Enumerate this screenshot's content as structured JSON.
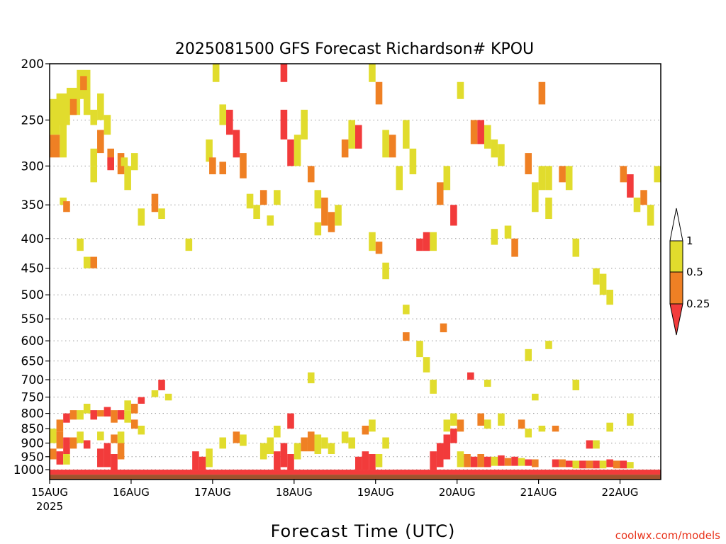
{
  "chart_data": {
    "type": "heatmap",
    "title": "2025081500 GFS Forecast Richardson# KPOU",
    "xlabel": "Forecast Time (UTC)",
    "ylabel": "",
    "credit": "coolwx.com/models",
    "x_unit": "hours since 2025-08-15 00Z",
    "x_range": [
      0,
      180
    ],
    "x_ticks": [
      {
        "hour": 0,
        "label": "15AUG",
        "sublabel": "2025"
      },
      {
        "hour": 24,
        "label": "16AUG",
        "sublabel": ""
      },
      {
        "hour": 48,
        "label": "17AUG",
        "sublabel": ""
      },
      {
        "hour": 72,
        "label": "18AUG",
        "sublabel": ""
      },
      {
        "hour": 96,
        "label": "19AUG",
        "sublabel": ""
      },
      {
        "hour": 120,
        "label": "20AUG",
        "sublabel": ""
      },
      {
        "hour": 144,
        "label": "21AUG",
        "sublabel": ""
      },
      {
        "hour": 168,
        "label": "22AUG",
        "sublabel": ""
      }
    ],
    "y_unit": "hPa",
    "y_scale": "log-pressure",
    "y_range": [
      1040,
      200
    ],
    "y_ticks": [
      200,
      250,
      300,
      350,
      400,
      450,
      500,
      550,
      600,
      650,
      700,
      750,
      800,
      850,
      900,
      950,
      1000
    ],
    "grid": "dotted horizontal",
    "colorbar": {
      "placement": "right",
      "levels": [
        {
          "label": "1",
          "range": ">1",
          "color": "#ffffff"
        },
        {
          "label": "0.5",
          "range": "0.5-1",
          "color": "#e1dc2d"
        },
        {
          "label": "0.25",
          "range": "0.25-0.5",
          "color": "#ef8024"
        },
        {
          "label": "",
          "range": "<0.25",
          "color": "#f23b3b"
        }
      ],
      "ticks": [
        "1",
        "0.5",
        "0.25"
      ]
    },
    "colors": {
      "low": "#f23b3b",
      "mid": "#ef8024",
      "high": "#e1dc2d",
      "ground": "#a0522d"
    },
    "ground": {
      "p_from": 1020,
      "p_to": 1040
    },
    "cells": [
      [
        0,
        3,
        230,
        265,
        "y"
      ],
      [
        0,
        3,
        265,
        290,
        "o"
      ],
      [
        2,
        6,
        225,
        255,
        "y"
      ],
      [
        3,
        5,
        255,
        290,
        "y"
      ],
      [
        5,
        9,
        220,
        245,
        "y"
      ],
      [
        6,
        8,
        230,
        245,
        "o"
      ],
      [
        8,
        12,
        205,
        230,
        "y"
      ],
      [
        9,
        11,
        210,
        222,
        "o"
      ],
      [
        10,
        12,
        225,
        245,
        "y"
      ],
      [
        12,
        14,
        240,
        255,
        "y"
      ],
      [
        14,
        16,
        225,
        250,
        "y"
      ],
      [
        14,
        16,
        260,
        285,
        "o"
      ],
      [
        16,
        18,
        245,
        265,
        "y"
      ],
      [
        17,
        19,
        280,
        300,
        "o"
      ],
      [
        17,
        19,
        290,
        305,
        "r"
      ],
      [
        20,
        22,
        285,
        310,
        "o"
      ],
      [
        21,
        23,
        290,
        300,
        "y"
      ],
      [
        22,
        24,
        300,
        330,
        "y"
      ],
      [
        24,
        26,
        285,
        305,
        "y"
      ],
      [
        3,
        5,
        340,
        350,
        "y"
      ],
      [
        4,
        6,
        345,
        360,
        "o"
      ],
      [
        12,
        14,
        280,
        300,
        "y"
      ],
      [
        12,
        14,
        300,
        320,
        "y"
      ],
      [
        26,
        28,
        355,
        380,
        "y"
      ],
      [
        30,
        32,
        335,
        360,
        "o"
      ],
      [
        32,
        34,
        355,
        370,
        "y"
      ],
      [
        8,
        10,
        400,
        420,
        "y"
      ],
      [
        10,
        12,
        430,
        450,
        "y"
      ],
      [
        12,
        14,
        430,
        450,
        "o"
      ],
      [
        40,
        42,
        400,
        420,
        "y"
      ],
      [
        46,
        48,
        270,
        295,
        "y"
      ],
      [
        47,
        49,
        290,
        310,
        "o"
      ],
      [
        48,
        50,
        200,
        215,
        "y"
      ],
      [
        50,
        52,
        235,
        255,
        "y"
      ],
      [
        52,
        54,
        240,
        265,
        "r"
      ],
      [
        54,
        56,
        260,
        290,
        "r"
      ],
      [
        50,
        52,
        295,
        310,
        "o"
      ],
      [
        56,
        58,
        285,
        315,
        "o"
      ],
      [
        58,
        60,
        335,
        355,
        "y"
      ],
      [
        60,
        62,
        350,
        370,
        "y"
      ],
      [
        62,
        64,
        330,
        350,
        "o"
      ],
      [
        64,
        66,
        365,
        380,
        "y"
      ],
      [
        66,
        68,
        330,
        350,
        "y"
      ],
      [
        68,
        70,
        200,
        215,
        "r"
      ],
      [
        68,
        70,
        240,
        270,
        "r"
      ],
      [
        70,
        72,
        270,
        300,
        "r"
      ],
      [
        72,
        74,
        265,
        300,
        "y"
      ],
      [
        74,
        76,
        240,
        270,
        "y"
      ],
      [
        76,
        78,
        300,
        320,
        "o"
      ],
      [
        78,
        80,
        330,
        355,
        "y"
      ],
      [
        80,
        82,
        340,
        380,
        "o"
      ],
      [
        82,
        84,
        360,
        390,
        "o"
      ],
      [
        84,
        86,
        350,
        380,
        "y"
      ],
      [
        78,
        80,
        375,
        395,
        "y"
      ],
      [
        86,
        88,
        270,
        290,
        "o"
      ],
      [
        88,
        90,
        250,
        280,
        "y"
      ],
      [
        90,
        92,
        255,
        280,
        "r"
      ],
      [
        94,
        96,
        200,
        215,
        "y"
      ],
      [
        96,
        98,
        215,
        235,
        "o"
      ],
      [
        98,
        100,
        260,
        290,
        "y"
      ],
      [
        100,
        102,
        265,
        290,
        "o"
      ],
      [
        102,
        104,
        300,
        330,
        "y"
      ],
      [
        104,
        106,
        250,
        280,
        "y"
      ],
      [
        106,
        108,
        280,
        310,
        "y"
      ],
      [
        94,
        96,
        390,
        420,
        "y"
      ],
      [
        96,
        98,
        405,
        425,
        "o"
      ],
      [
        98,
        100,
        440,
        470,
        "y"
      ],
      [
        108,
        110,
        400,
        420,
        "r"
      ],
      [
        110,
        112,
        390,
        420,
        "r"
      ],
      [
        112,
        114,
        390,
        420,
        "y"
      ],
      [
        114,
        116,
        320,
        350,
        "o"
      ],
      [
        116,
        118,
        300,
        330,
        "y"
      ],
      [
        118,
        120,
        350,
        380,
        "r"
      ],
      [
        120,
        122,
        215,
        230,
        "y"
      ],
      [
        124,
        126,
        250,
        275,
        "o"
      ],
      [
        126,
        128,
        250,
        275,
        "r"
      ],
      [
        128,
        130,
        255,
        280,
        "y"
      ],
      [
        130,
        132,
        270,
        290,
        "y"
      ],
      [
        132,
        134,
        275,
        300,
        "y"
      ],
      [
        130,
        132,
        385,
        410,
        "y"
      ],
      [
        134,
        136,
        380,
        400,
        "y"
      ],
      [
        136,
        138,
        400,
        430,
        "o"
      ],
      [
        140,
        142,
        285,
        310,
        "o"
      ],
      [
        142,
        144,
        320,
        360,
        "y"
      ],
      [
        144,
        146,
        300,
        330,
        "y"
      ],
      [
        146,
        148,
        300,
        330,
        "y"
      ],
      [
        150,
        152,
        300,
        320,
        "o"
      ],
      [
        152,
        154,
        300,
        330,
        "y"
      ],
      [
        144,
        146,
        215,
        235,
        "o"
      ],
      [
        146,
        148,
        340,
        370,
        "y"
      ],
      [
        154,
        156,
        400,
        430,
        "y"
      ],
      [
        160,
        162,
        450,
        480,
        "y"
      ],
      [
        162,
        164,
        460,
        500,
        "y"
      ],
      [
        164,
        166,
        490,
        520,
        "y"
      ],
      [
        168,
        170,
        300,
        320,
        "o"
      ],
      [
        170,
        172,
        310,
        340,
        "r"
      ],
      [
        172,
        174,
        340,
        360,
        "y"
      ],
      [
        174,
        176,
        330,
        350,
        "o"
      ],
      [
        176,
        178,
        350,
        380,
        "y"
      ],
      [
        178,
        180,
        300,
        320,
        "y"
      ],
      [
        104,
        106,
        520,
        540,
        "y"
      ],
      [
        104,
        106,
        580,
        600,
        "o"
      ],
      [
        108,
        110,
        600,
        640,
        "y"
      ],
      [
        110,
        112,
        640,
        680,
        "y"
      ],
      [
        112,
        114,
        700,
        740,
        "y"
      ],
      [
        115,
        117,
        560,
        580,
        "o"
      ],
      [
        123,
        125,
        680,
        700,
        "r"
      ],
      [
        128,
        130,
        700,
        720,
        "y"
      ],
      [
        140,
        142,
        620,
        650,
        "y"
      ],
      [
        146,
        148,
        600,
        620,
        "y"
      ],
      [
        154,
        156,
        700,
        730,
        "y"
      ],
      [
        142,
        144,
        740,
        760,
        "y"
      ],
      [
        32,
        34,
        700,
        730,
        "r"
      ],
      [
        30,
        32,
        730,
        750,
        "y"
      ],
      [
        34,
        36,
        740,
        760,
        "y"
      ],
      [
        26,
        28,
        750,
        770,
        "r"
      ],
      [
        22,
        24,
        760,
        790,
        "y"
      ],
      [
        24,
        26,
        770,
        800,
        "o"
      ],
      [
        76,
        78,
        680,
        710,
        "y"
      ],
      [
        70,
        72,
        800,
        850,
        "r"
      ],
      [
        66,
        68,
        840,
        880,
        "y"
      ],
      [
        2,
        4,
        820,
        860,
        "o"
      ],
      [
        4,
        6,
        800,
        830,
        "r"
      ],
      [
        6,
        8,
        790,
        820,
        "o"
      ],
      [
        8,
        10,
        790,
        820,
        "y"
      ],
      [
        10,
        12,
        770,
        800,
        "y"
      ],
      [
        12,
        14,
        790,
        820,
        "r"
      ],
      [
        14,
        16,
        790,
        810,
        "o"
      ],
      [
        16,
        18,
        780,
        810,
        "r"
      ],
      [
        18,
        20,
        790,
        830,
        "o"
      ],
      [
        20,
        22,
        790,
        820,
        "r"
      ],
      [
        22,
        24,
        790,
        830,
        "y"
      ],
      [
        0,
        2,
        850,
        900,
        "y"
      ],
      [
        2,
        4,
        860,
        920,
        "o"
      ],
      [
        4,
        6,
        880,
        940,
        "r"
      ],
      [
        6,
        8,
        880,
        920,
        "o"
      ],
      [
        8,
        10,
        860,
        900,
        "y"
      ],
      [
        10,
        12,
        890,
        920,
        "r"
      ],
      [
        14,
        16,
        860,
        890,
        "y"
      ],
      [
        18,
        20,
        870,
        900,
        "o"
      ],
      [
        20,
        22,
        860,
        900,
        "y"
      ],
      [
        24,
        26,
        820,
        850,
        "o"
      ],
      [
        26,
        28,
        840,
        870,
        "y"
      ],
      [
        0,
        2,
        920,
        960,
        "o"
      ],
      [
        2,
        4,
        930,
        980,
        "r"
      ],
      [
        4,
        6,
        940,
        980,
        "y"
      ],
      [
        14,
        16,
        920,
        990,
        "r"
      ],
      [
        16,
        18,
        900,
        990,
        "r"
      ],
      [
        18,
        20,
        940,
        1005,
        "r"
      ],
      [
        20,
        22,
        900,
        960,
        "o"
      ],
      [
        42,
        44,
        930,
        1000,
        "r"
      ],
      [
        44,
        46,
        950,
        1000,
        "r"
      ],
      [
        46,
        48,
        920,
        990,
        "y"
      ],
      [
        50,
        52,
        880,
        920,
        "y"
      ],
      [
        54,
        56,
        860,
        900,
        "o"
      ],
      [
        56,
        58,
        870,
        910,
        "y"
      ],
      [
        62,
        64,
        900,
        960,
        "y"
      ],
      [
        64,
        66,
        880,
        940,
        "y"
      ],
      [
        66,
        68,
        930,
        1000,
        "r"
      ],
      [
        68,
        70,
        900,
        990,
        "r"
      ],
      [
        70,
        72,
        940,
        1005,
        "r"
      ],
      [
        72,
        74,
        900,
        960,
        "y"
      ],
      [
        74,
        76,
        880,
        930,
        "o"
      ],
      [
        76,
        78,
        860,
        930,
        "o"
      ],
      [
        78,
        80,
        870,
        940,
        "y"
      ],
      [
        80,
        82,
        880,
        920,
        "y"
      ],
      [
        82,
        84,
        900,
        940,
        "y"
      ],
      [
        86,
        88,
        860,
        900,
        "y"
      ],
      [
        88,
        90,
        880,
        920,
        "y"
      ],
      [
        90,
        92,
        950,
        1000,
        "r"
      ],
      [
        92,
        94,
        930,
        1000,
        "r"
      ],
      [
        94,
        96,
        940,
        1000,
        "r"
      ],
      [
        96,
        98,
        940,
        990,
        "y"
      ],
      [
        92,
        94,
        840,
        870,
        "o"
      ],
      [
        94,
        96,
        820,
        860,
        "y"
      ],
      [
        98,
        100,
        880,
        920,
        "y"
      ],
      [
        112,
        114,
        930,
        1000,
        "r"
      ],
      [
        114,
        116,
        900,
        990,
        "r"
      ],
      [
        116,
        118,
        870,
        960,
        "r"
      ],
      [
        118,
        120,
        850,
        900,
        "r"
      ],
      [
        116,
        118,
        820,
        860,
        "y"
      ],
      [
        118,
        120,
        800,
        840,
        "y"
      ],
      [
        120,
        122,
        820,
        860,
        "o"
      ],
      [
        120,
        122,
        930,
        990,
        "y"
      ],
      [
        122,
        124,
        940,
        990,
        "o"
      ],
      [
        124,
        126,
        950,
        990,
        "r"
      ],
      [
        126,
        128,
        940,
        990,
        "o"
      ],
      [
        128,
        130,
        950,
        990,
        "r"
      ],
      [
        130,
        132,
        950,
        985,
        "y"
      ],
      [
        132,
        134,
        945,
        985,
        "r"
      ],
      [
        134,
        136,
        955,
        985,
        "o"
      ],
      [
        136,
        138,
        950,
        985,
        "r"
      ],
      [
        138,
        140,
        955,
        985,
        "y"
      ],
      [
        140,
        142,
        960,
        985,
        "r"
      ],
      [
        142,
        144,
        960,
        990,
        "o"
      ],
      [
        148,
        150,
        960,
        990,
        "r"
      ],
      [
        150,
        152,
        960,
        990,
        "o"
      ],
      [
        152,
        154,
        965,
        990,
        "r"
      ],
      [
        154,
        156,
        965,
        995,
        "y"
      ],
      [
        156,
        158,
        965,
        995,
        "r"
      ],
      [
        158,
        160,
        965,
        995,
        "o"
      ],
      [
        160,
        162,
        965,
        995,
        "r"
      ],
      [
        162,
        164,
        965,
        995,
        "y"
      ],
      [
        164,
        166,
        960,
        990,
        "r"
      ],
      [
        166,
        168,
        965,
        995,
        "o"
      ],
      [
        168,
        170,
        965,
        995,
        "r"
      ],
      [
        170,
        172,
        970,
        995,
        "y"
      ],
      [
        126,
        128,
        800,
        840,
        "o"
      ],
      [
        128,
        130,
        820,
        850,
        "y"
      ],
      [
        132,
        134,
        800,
        840,
        "y"
      ],
      [
        138,
        140,
        820,
        850,
        "o"
      ],
      [
        140,
        142,
        850,
        880,
        "y"
      ],
      [
        144,
        146,
        840,
        860,
        "y"
      ],
      [
        148,
        150,
        840,
        860,
        "o"
      ],
      [
        158,
        160,
        890,
        920,
        "r"
      ],
      [
        160,
        162,
        890,
        920,
        "y"
      ],
      [
        164,
        166,
        830,
        860,
        "y"
      ],
      [
        170,
        172,
        800,
        840,
        "y"
      ],
      [
        0,
        180,
        1000,
        1020,
        "r"
      ]
    ]
  }
}
